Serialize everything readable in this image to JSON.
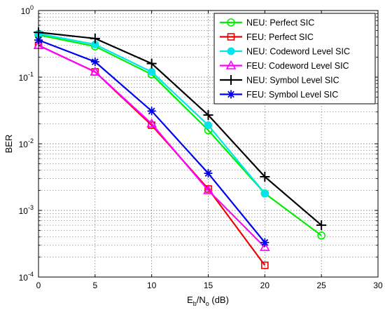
{
  "chart_data": {
    "type": "line",
    "xlabel_main": "E",
    "xlabel_sub1": "b",
    "xlabel_mid": "/N",
    "xlabel_sub2": "o",
    "xlabel_tail": " (dB)",
    "ylabel": "BER",
    "xlim": [
      0,
      30
    ],
    "ylim": [
      0.0001,
      1
    ],
    "yscale": "log",
    "grid": true,
    "legend_position": "top-right",
    "x_ticks": [
      "0",
      "5",
      "10",
      "15",
      "20",
      "25",
      "30"
    ],
    "y_ticks": [
      {
        "base": "10",
        "exp": "0"
      },
      {
        "base": "10",
        "exp": "-1"
      },
      {
        "base": "10",
        "exp": "-2"
      },
      {
        "base": "10",
        "exp": "-3"
      },
      {
        "base": "10",
        "exp": "-4"
      }
    ],
    "series": [
      {
        "name": "NEU: Perfect SIC",
        "color": "#00ee00",
        "marker": "circle",
        "x": [
          0,
          5,
          10,
          15,
          20,
          25
        ],
        "y": [
          0.43,
          0.29,
          0.11,
          0.016,
          0.0018,
          0.00042
        ]
      },
      {
        "name": "FEU: Perfect SIC",
        "color": "#ee0000",
        "marker": "square",
        "x": [
          0,
          5,
          10,
          15,
          20
        ],
        "y": [
          0.3,
          0.12,
          0.019,
          0.0021,
          0.00015
        ]
      },
      {
        "name": "NEU: Codeword Level SIC",
        "color": "#00e5ee",
        "marker": "filled-circle",
        "x": [
          0,
          5,
          10,
          15,
          20
        ],
        "y": [
          0.45,
          0.31,
          0.12,
          0.019,
          0.0018
        ]
      },
      {
        "name": "FEU: Codeword Level SIC",
        "color": "#ff00ff",
        "marker": "triangle",
        "x": [
          0,
          5,
          10,
          15,
          20
        ],
        "y": [
          0.3,
          0.12,
          0.02,
          0.002,
          0.00028
        ]
      },
      {
        "name": "NEU: Symbol Level SIC",
        "color": "#000000",
        "marker": "plus",
        "x": [
          0,
          5,
          10,
          15,
          20,
          25
        ],
        "y": [
          0.47,
          0.38,
          0.16,
          0.027,
          0.0032,
          0.0006
        ]
      },
      {
        "name": "FEU: Symbol Level SIC",
        "color": "#0000ee",
        "marker": "asterisk",
        "x": [
          0,
          5,
          10,
          15,
          20
        ],
        "y": [
          0.36,
          0.17,
          0.031,
          0.0036,
          0.00033
        ]
      }
    ]
  }
}
